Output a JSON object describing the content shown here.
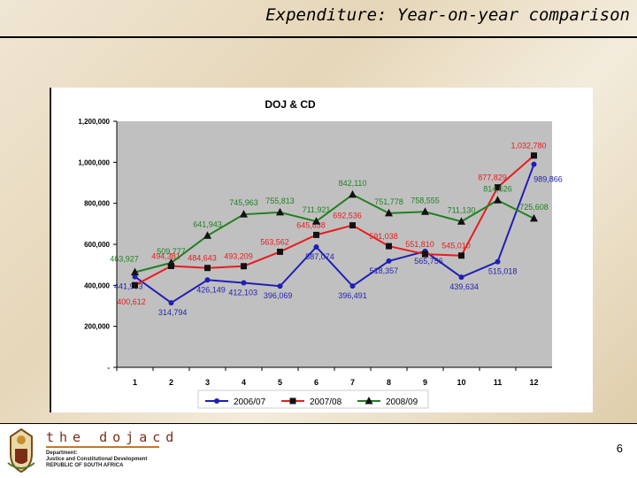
{
  "slide": {
    "title": "Expenditure:  Year-on-year comparison",
    "page_number": "6"
  },
  "footer": {
    "logo_word": "the dojacd",
    "dept_line1": "Department:",
    "dept_line2": "Justice and Constitutional Development",
    "dept_line3": "REPUBLIC OF SOUTH AFRICA"
  },
  "colors": {
    "series_2006": "#1f1fb4",
    "series_2007": "#e81c1c",
    "series_2008": "#208020",
    "plot_bg": "#c0c0c0"
  },
  "chart_data": {
    "type": "line",
    "title": "DOJ & CD",
    "xlabel": "",
    "ylabel": "",
    "categories": [
      "1",
      "2",
      "3",
      "4",
      "5",
      "6",
      "7",
      "8",
      "9",
      "10",
      "11",
      "12"
    ],
    "ylim": [
      0,
      1200000
    ],
    "yticks": [
      0,
      200000,
      400000,
      600000,
      800000,
      1000000,
      1200000
    ],
    "ytick_labels": [
      "-",
      "200,000",
      "400,000",
      "600,000",
      "800,000",
      "1,000,000",
      "1,200,000"
    ],
    "grid": false,
    "legend_position": "bottom",
    "series": [
      {
        "name": "2006/07",
        "marker": "circle",
        "values": [
          441993,
          314794,
          426149,
          412103,
          396069,
          587074,
          396491,
          518357,
          565756,
          439634,
          515018,
          989866
        ],
        "labels": [
          "441,993",
          "314,794",
          "426,149",
          "412,103",
          "396,069",
          "587,074",
          "396,491",
          "518,357",
          "565,756",
          "439,634",
          "515,018",
          "989,866"
        ]
      },
      {
        "name": "2007/08",
        "marker": "square",
        "values": [
          400612,
          494381,
          484643,
          493209,
          563562,
          645838,
          692536,
          591038,
          551810,
          545010,
          877829,
          1032780
        ],
        "labels": [
          "400,612",
          "494,381",
          "484,643",
          "493,209",
          "563,562",
          "645,838",
          "692,536",
          "591,038",
          "551,810",
          "545,010",
          "877,829",
          "1,032,780"
        ]
      },
      {
        "name": "2008/09",
        "marker": "triangle",
        "values": [
          463927,
          509777,
          641943,
          745963,
          755813,
          711921,
          842110,
          751778,
          758555,
          711130,
          814626,
          725608
        ],
        "labels": [
          "463,927",
          "509,777",
          "641,943",
          "745,963",
          "755,813",
          "711,921",
          "842,110",
          "751,778",
          "758,555",
          "711,130",
          "814,626",
          "725,608"
        ]
      }
    ]
  }
}
